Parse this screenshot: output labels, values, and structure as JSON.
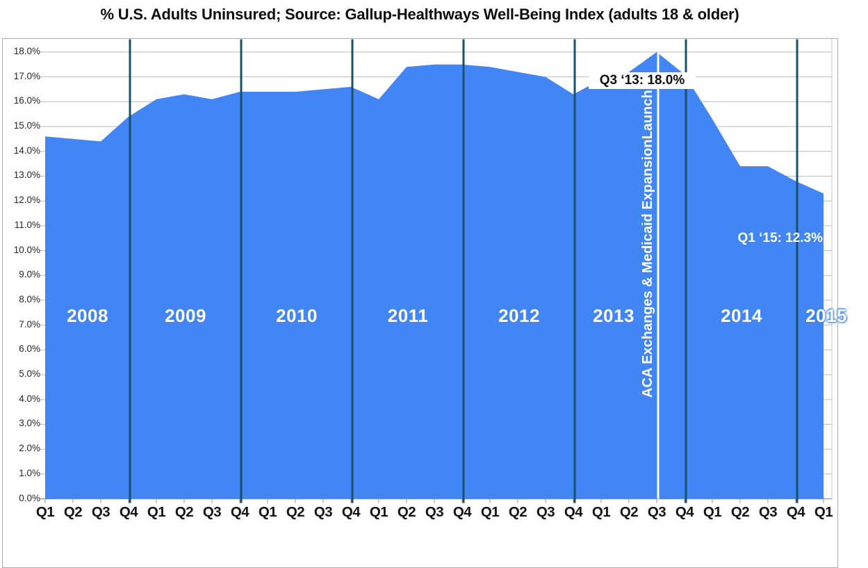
{
  "title": "% U.S. Adults Uninsured; Source: Gallup-Healthways Well-Being Index (adults 18 & older)",
  "colors": {
    "area_fill": "#4285f4",
    "year_separator_line": "#17506a",
    "event_line": "#ffffff",
    "gridline": "#b9b9b9",
    "axis_line": "#8f8f8f",
    "frame_border": "#ababab",
    "title_text": "#0d0d0d",
    "year_label_text": "#ffffff"
  },
  "chart_data": {
    "type": "area",
    "title": "% U.S. Adults Uninsured; Source: Gallup-Healthways Well-Being Index (adults 18 & older)",
    "x_quarter_labels": [
      "Q1",
      "Q2",
      "Q3",
      "Q4",
      "Q1",
      "Q2",
      "Q3",
      "Q4",
      "Q1",
      "Q2",
      "Q3",
      "Q4",
      "Q1",
      "Q2",
      "Q3",
      "Q4",
      "Q1",
      "Q2",
      "Q3",
      "Q4",
      "Q1",
      "Q2",
      "Q3",
      "Q4",
      "Q1",
      "Q2",
      "Q3",
      "Q4",
      "Q1"
    ],
    "year_labels": [
      "2008",
      "2009",
      "2010",
      "2011",
      "2012",
      "2013",
      "2014",
      "2015"
    ],
    "series": [
      {
        "name": "% U.S. Adults Uninsured",
        "values": [
          14.6,
          14.5,
          14.4,
          15.4,
          16.1,
          16.3,
          16.1,
          16.4,
          16.4,
          16.4,
          16.5,
          16.6,
          16.1,
          17.4,
          17.5,
          17.5,
          17.4,
          17.2,
          17.0,
          16.3,
          16.9,
          17.2,
          18.0,
          17.1,
          15.3,
          13.4,
          13.4,
          12.8,
          12.3
        ]
      }
    ],
    "ylim": [
      0.0,
      18.0
    ],
    "y_tick_step": 1.0,
    "y_tick_labels": [
      "18.0%",
      "17.0%",
      "16.0%",
      "15.0%",
      "14.0%",
      "13.0%",
      "12.0%",
      "11.0%",
      "10.0%",
      "9.0%",
      "8.0%",
      "7.0%",
      "6.0%",
      "5.0%",
      "4.0%",
      "3.0%",
      "2.0%",
      "1.0%",
      "0.0%"
    ],
    "grid": "horizontal",
    "legend": "none",
    "year_separators_after": [
      "Q4 2008",
      "Q4 2009",
      "Q4 2010",
      "Q4 2011",
      "Q4 2012",
      "Q4 2013",
      "Q4 2014"
    ],
    "annotations": {
      "peak": {
        "text": "Q3 ‘13: 18.0%",
        "point": "Q3 2013",
        "value": 18.0
      },
      "latest": {
        "text": "Q1 ‘15: 12.3%",
        "point": "Q1 2015",
        "value": 12.3
      },
      "aca_line": {
        "label": "ACA Exchanges & Medicaid ExpansionLaunch",
        "point": "Q3 2013"
      }
    }
  }
}
